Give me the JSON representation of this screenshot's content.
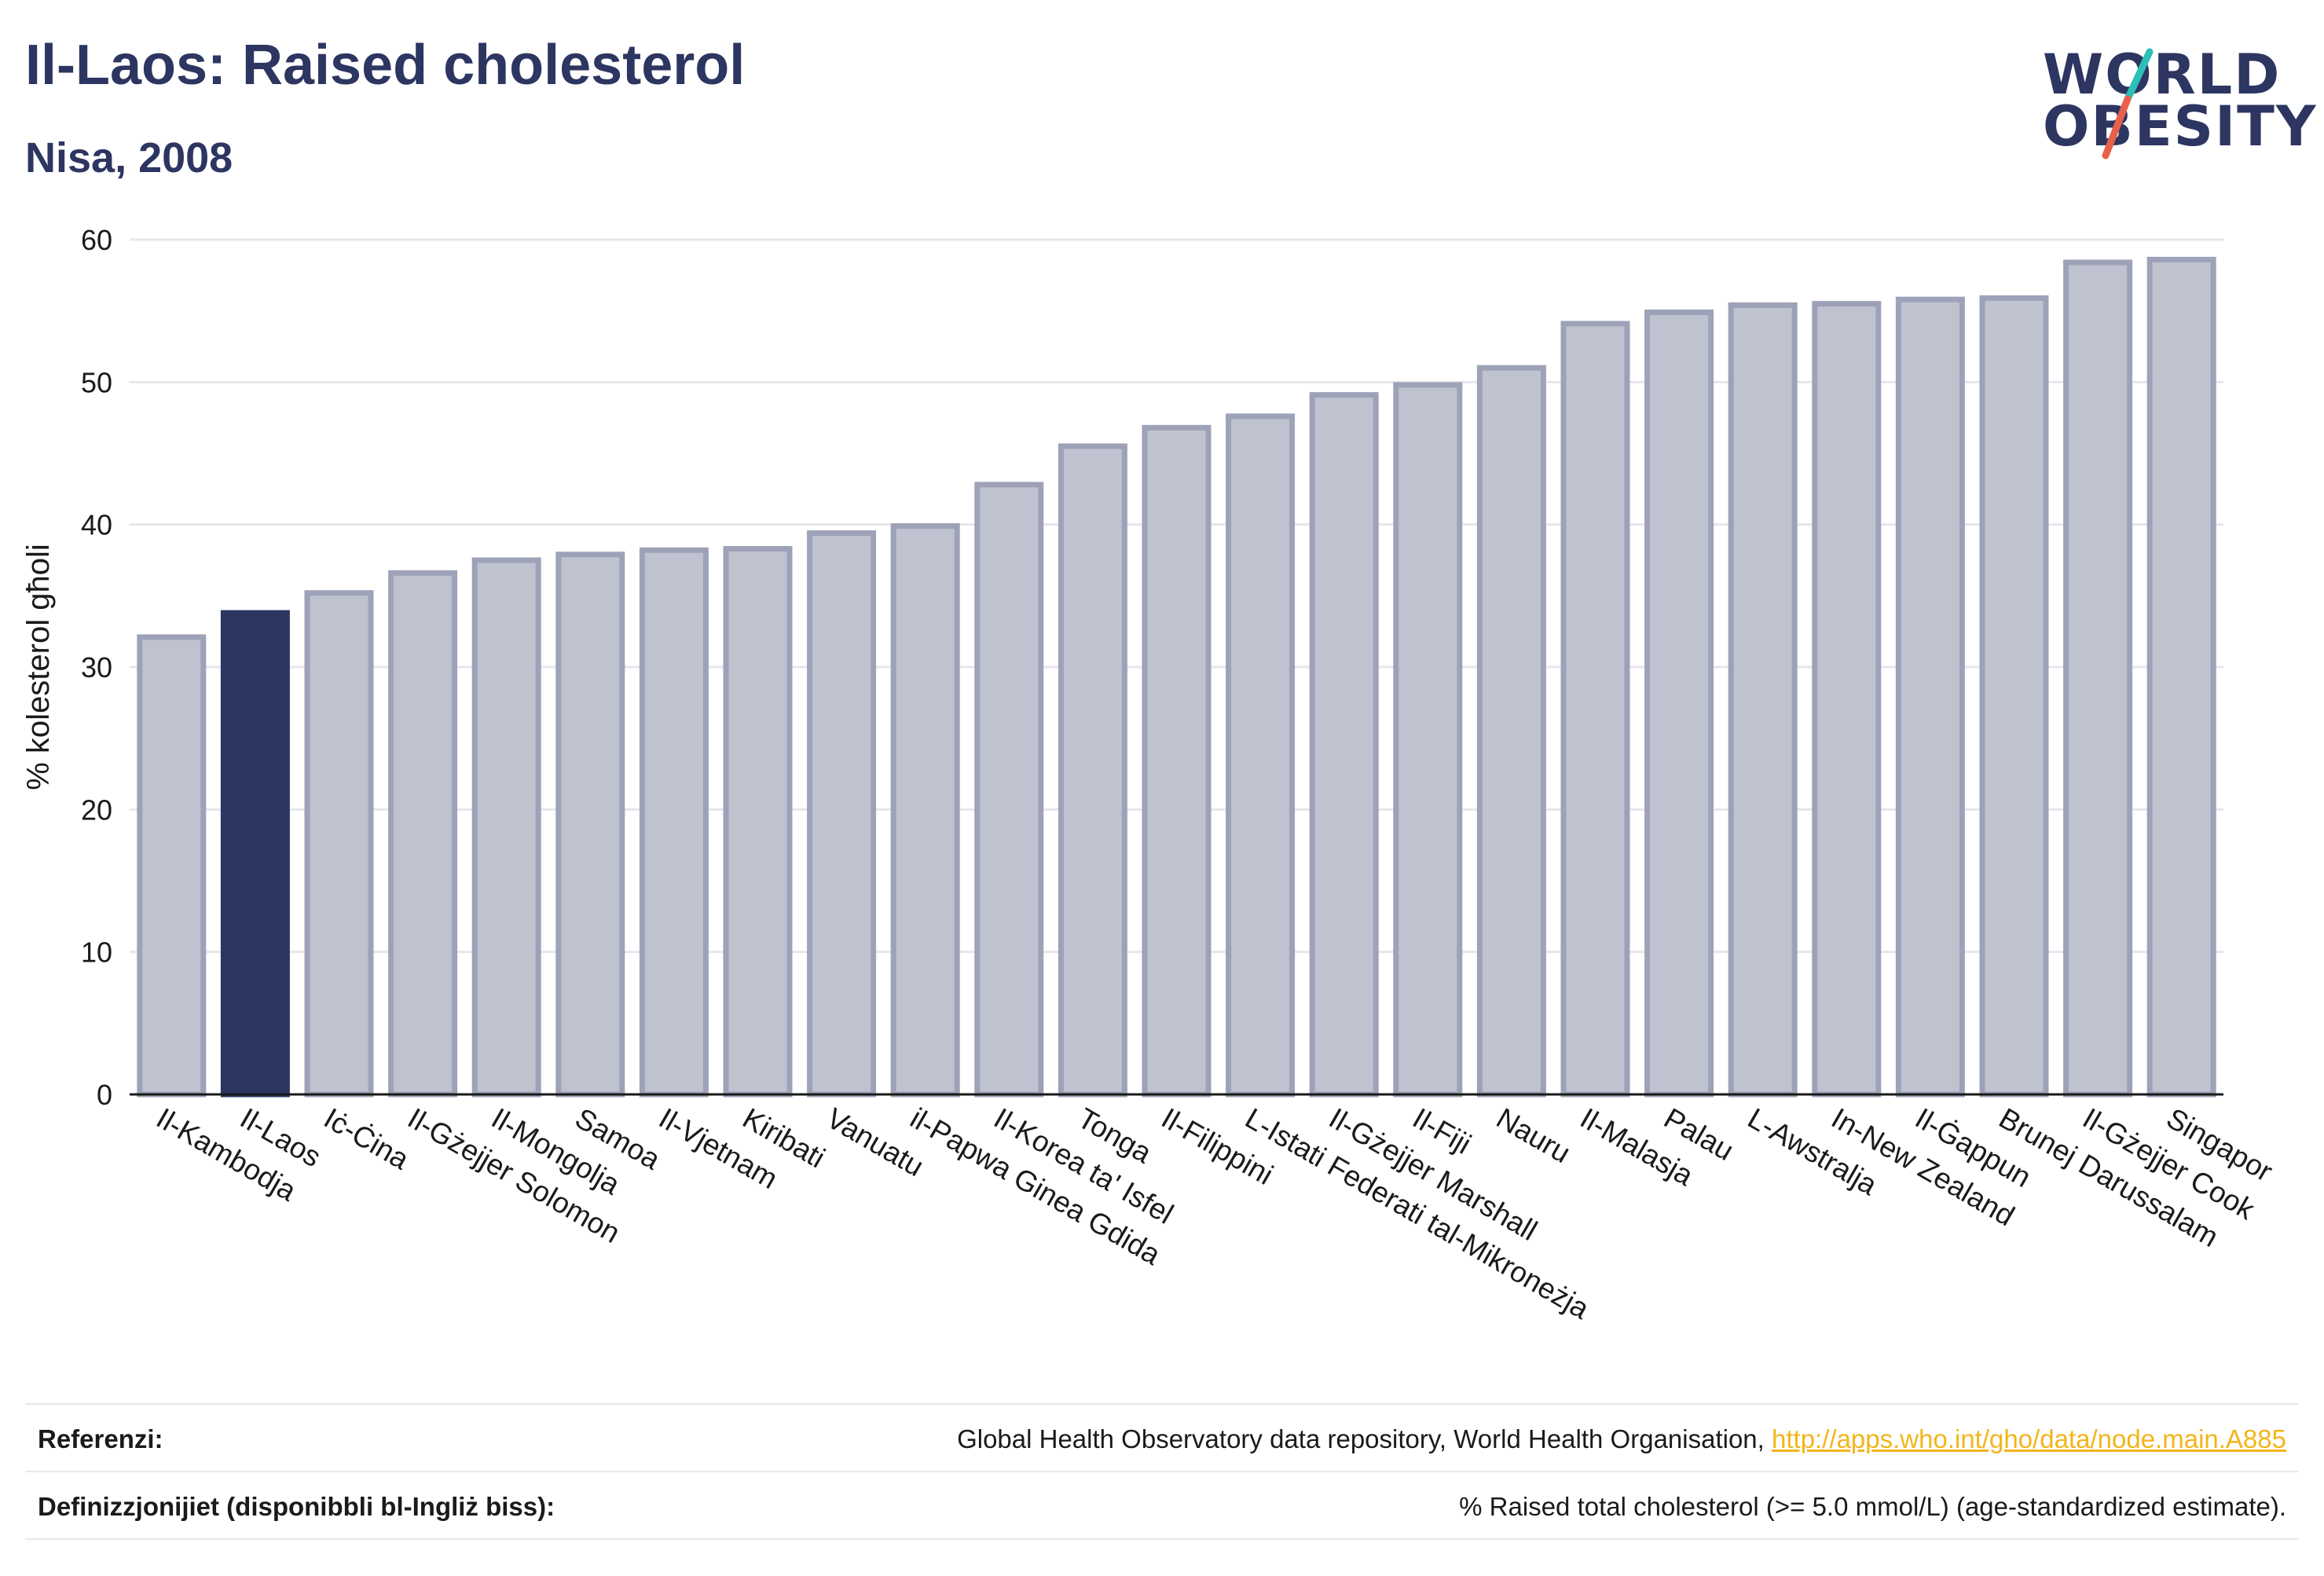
{
  "title": "Il-Laos: Raised cholesterol",
  "subtitle": "Nisa, 2008",
  "logo": {
    "line1": "WORLD",
    "line2": "OBESITY",
    "slash_colors": [
      "#2bbfb6",
      "#e8604c"
    ]
  },
  "colors": {
    "highlight": "#2d3561",
    "bar_fill": "#bfc2cf",
    "bar_stroke": "#9ea2b8",
    "text": "#2d3561",
    "link": "#f2b51a"
  },
  "chart_data": {
    "type": "bar",
    "ylabel": "% kolesterol għoli",
    "ylim": [
      0,
      60
    ],
    "yticks": [
      "0",
      "10",
      "20",
      "30",
      "40",
      "50",
      "60"
    ],
    "grid": true,
    "highlight_category": "Il-Laos",
    "categories": [
      "Il-Kambodja",
      "Il-Laos",
      "Iċ-Ċina",
      "Il-Gżejjer Solomon",
      "Il-Mongolja",
      "Samoa",
      "Il-Vjetnam",
      "Kiribati",
      "Vanuatu",
      "il-Papwa Ginea Gdida",
      "Il-Korea ta' Isfel",
      "Tonga",
      "Il-Filippini",
      "L-Istati Federati tal-Mikroneżja",
      "Il-Gżejjer Marshall",
      "Il-Fiji",
      "Nauru",
      "Il-Malasja",
      "Palau",
      "L-Awstralja",
      "In-New Zealand",
      "Il-Ġappun",
      "Brunej Darussalam",
      "Il-Gżejjer Cook",
      "Singapor"
    ],
    "values": [
      32.1,
      33.8,
      35.2,
      36.6,
      37.5,
      37.9,
      38.2,
      38.3,
      39.4,
      39.9,
      42.8,
      45.5,
      46.8,
      47.6,
      49.1,
      49.8,
      51.0,
      54.1,
      54.9,
      55.4,
      55.5,
      55.8,
      55.9,
      58.4,
      58.6
    ]
  },
  "footer": {
    "references_label": "Referenzi:",
    "references_text": "Global Health Observatory data repository, World Health Organisation, ",
    "references_link": "http://apps.who.int/gho/data/node.main.A885",
    "definitions_label": "Definizzjonijiet (disponibbli bl-Ingliż biss):",
    "definitions_text": "% Raised total cholesterol (>= 5.0 mmol/L) (age-standardized estimate)."
  }
}
